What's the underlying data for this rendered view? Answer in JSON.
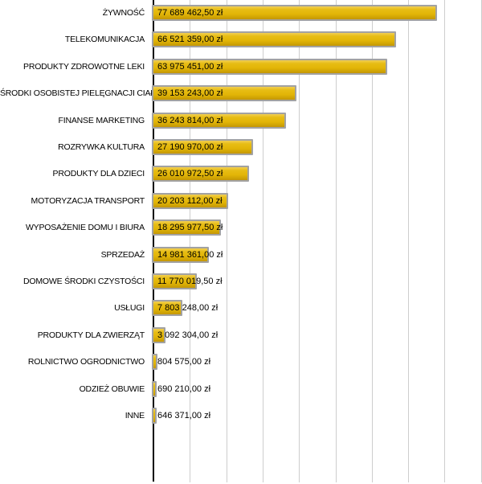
{
  "chart_data": {
    "type": "bar",
    "orientation": "horizontal",
    "title": "",
    "xlabel": "",
    "ylabel": "",
    "currency_suffix": "zł",
    "categories": [
      "ŻYWNOŚĆ",
      "TELEKOMUNIKACJA",
      "PRODUKTY ZDROWOTNE LEKI",
      "ŚRODKI OSOBISTEJ PIELĘGNACJI CIAŁA",
      "FINANSE MARKETING",
      "ROZRYWKA KULTURA",
      "PRODUKTY DLA DZIECI",
      "MOTORYZACJA TRANSPORT",
      "WYPOSAŻENIE DOMU I BIURA",
      "SPRZEDAŻ",
      "DOMOWE ŚRODKI CZYSTOŚCI",
      "USŁUGI",
      "PRODUKTY DLA ZWIERZĄT",
      "ROLNICTWO OGRODNICTWO",
      "ODZIEŻ OBUWIE",
      "INNE"
    ],
    "values": [
      77689462.5,
      66521359.0,
      63975451.0,
      39153243.0,
      36243814.0,
      27190970.0,
      26010972.5,
      20203112.0,
      18295977.5,
      14981361.0,
      11770019.5,
      7803248.0,
      3092304.0,
      804575.0,
      690210.0,
      646371.0
    ],
    "value_labels": [
      "77 689 462,50 zł",
      "66 521 359,00 zł",
      "63 975 451,00 zł",
      "39 153 243,00 zł",
      "36 243 814,00 zł",
      "27 190 970,00 zł",
      "26 010 972,50 zł",
      "20 203 112,00 zł",
      "18 295 977,50 zł",
      "14 981 361,00 zł",
      "11 770 019,50 zł",
      "7 803 248,00 zł",
      "3 092 304,00 zł",
      "804 575,00 zł",
      "690 210,00 zł",
      "646 371,00 zł"
    ],
    "xlim": [
      0,
      90600000
    ],
    "grid": {
      "axis": "x",
      "interval": 10000000,
      "visible": true,
      "lines_count": 9
    },
    "legend": "none",
    "colors": {
      "background": "#FFFFFF",
      "bar_gradient_top": "#F1CE52",
      "bar_gradient_upper": "#E7BD14",
      "bar_gradient_mid": "#E2B507",
      "bar_gradient_lower": "#CDA104",
      "bar_gradient_bottom": "#C3940A",
      "bar_border": "#A2A2A2",
      "gridline": "#CDCDCD",
      "axis_line": "#000000",
      "category_text": "#000000",
      "value_text": "#000000"
    }
  }
}
